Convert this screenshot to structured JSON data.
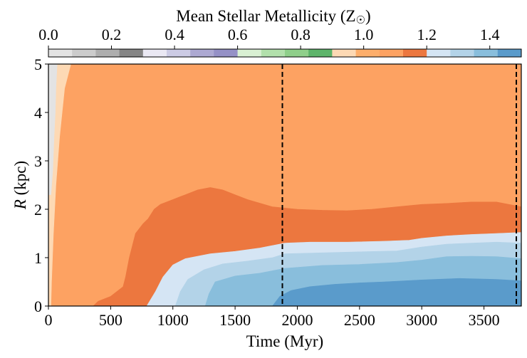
{
  "chart_data": {
    "type": "contourf",
    "title": "",
    "colorbar": {
      "label": "Mean Stellar Metallicity (Z",
      "label_symbol": "☉",
      "label_close": ")",
      "range": [
        0.0,
        1.5
      ],
      "ticks": [
        0.0,
        0.2,
        0.4,
        0.6,
        0.8,
        1.0,
        1.2,
        1.4
      ],
      "tick_labels": [
        "0.0",
        "0.2",
        "0.4",
        "0.6",
        "0.8",
        "1.0",
        "1.2",
        "1.4"
      ],
      "levels": [
        0.0,
        0.075,
        0.15,
        0.225,
        0.3,
        0.375,
        0.45,
        0.525,
        0.6,
        0.675,
        0.75,
        0.825,
        0.9,
        0.975,
        1.05,
        1.125,
        1.2,
        1.275,
        1.35,
        1.425,
        1.5
      ],
      "colors": [
        "#e3e3e3",
        "#cccccc",
        "#aeaeae",
        "#858585",
        "#eae8f3",
        "#cccbe4",
        "#ada9d2",
        "#9591c6",
        "#d9f0d3",
        "#b2e0ab",
        "#8fcf8a",
        "#5db46a",
        "#fdd9b4",
        "#fdae6b",
        "#fda262",
        "#ec773f",
        "#d5e5f4",
        "#b3d3e8",
        "#89bedc",
        "#5a9bcb"
      ]
    },
    "xlabel": "Time (Myr)",
    "ylabel_italic": "R",
    "ylabel_rest": " (kpc)",
    "xlim": [
      0,
      3800
    ],
    "ylim": [
      0,
      5
    ],
    "xticks": [
      0,
      500,
      1000,
      1500,
      2000,
      2500,
      3000,
      3500
    ],
    "xtick_labels": [
      "0",
      "500",
      "1000",
      "1500",
      "2000",
      "2500",
      "3000",
      "3500"
    ],
    "yticks": [
      0,
      1,
      2,
      3,
      4,
      5
    ],
    "ytick_labels": [
      "0",
      "1",
      "2",
      "3",
      "4",
      "5"
    ],
    "vlines": [
      1880,
      3760
    ],
    "vline_style": "dashed",
    "regions": [
      {
        "level": "1.05-1.125",
        "color": "#fda262",
        "boundary": [
          [
            0,
            0
          ],
          [
            0,
            5
          ],
          [
            3800,
            5
          ],
          [
            3800,
            0
          ]
        ]
      },
      {
        "level": "1.125-1.2",
        "color": "#ec773f",
        "boundary": [
          [
            360,
            0
          ],
          [
            400,
            0.1
          ],
          [
            500,
            0.2
          ],
          [
            600,
            0.4
          ],
          [
            620,
            0.6
          ],
          [
            650,
            1.0
          ],
          [
            680,
            1.3
          ],
          [
            700,
            1.5
          ],
          [
            760,
            1.7
          ],
          [
            800,
            1.8
          ],
          [
            850,
            2.0
          ],
          [
            900,
            2.1
          ],
          [
            1000,
            2.2
          ],
          [
            1100,
            2.3
          ],
          [
            1200,
            2.4
          ],
          [
            1300,
            2.45
          ],
          [
            1400,
            2.4
          ],
          [
            1500,
            2.3
          ],
          [
            1600,
            2.2
          ],
          [
            1800,
            2.05
          ],
          [
            2000,
            2.0
          ],
          [
            2200,
            1.98
          ],
          [
            2400,
            1.97
          ],
          [
            2600,
            2.0
          ],
          [
            2800,
            2.05
          ],
          [
            3000,
            2.1
          ],
          [
            3200,
            2.12
          ],
          [
            3400,
            2.15
          ],
          [
            3600,
            2.15
          ],
          [
            3800,
            2.05
          ],
          [
            3800,
            0
          ]
        ]
      },
      {
        "level": "1.2-1.275",
        "color": "#d5e5f4",
        "boundary": [
          [
            790,
            0
          ],
          [
            860,
            0.3
          ],
          [
            920,
            0.6
          ],
          [
            1000,
            0.85
          ],
          [
            1100,
            0.98
          ],
          [
            1300,
            1.08
          ],
          [
            1500,
            1.13
          ],
          [
            1700,
            1.2
          ],
          [
            1900,
            1.3
          ],
          [
            2100,
            1.32
          ],
          [
            2400,
            1.32
          ],
          [
            2700,
            1.34
          ],
          [
            2900,
            1.36
          ],
          [
            3000,
            1.4
          ],
          [
            3200,
            1.45
          ],
          [
            3400,
            1.48
          ],
          [
            3600,
            1.5
          ],
          [
            3800,
            1.52
          ],
          [
            3800,
            0
          ]
        ]
      },
      {
        "level": "1.275-1.35",
        "color": "#b3d3e8",
        "boundary": [
          [
            1020,
            0
          ],
          [
            1060,
            0.3
          ],
          [
            1120,
            0.55
          ],
          [
            1250,
            0.75
          ],
          [
            1400,
            0.87
          ],
          [
            1600,
            0.93
          ],
          [
            1800,
            1.0
          ],
          [
            1900,
            1.08
          ],
          [
            2200,
            1.1
          ],
          [
            2500,
            1.12
          ],
          [
            2800,
            1.14
          ],
          [
            3000,
            1.22
          ],
          [
            3200,
            1.28
          ],
          [
            3400,
            1.3
          ],
          [
            3600,
            1.32
          ],
          [
            3800,
            1.3
          ],
          [
            3800,
            0
          ]
        ]
      },
      {
        "level": "1.35-1.425",
        "color": "#89bedc",
        "boundary": [
          [
            1260,
            0
          ],
          [
            1290,
            0.25
          ],
          [
            1340,
            0.5
          ],
          [
            1500,
            0.62
          ],
          [
            1700,
            0.68
          ],
          [
            1900,
            0.78
          ],
          [
            2200,
            0.84
          ],
          [
            2500,
            0.86
          ],
          [
            2800,
            0.9
          ],
          [
            3000,
            0.95
          ],
          [
            3200,
            1.02
          ],
          [
            3400,
            1.03
          ],
          [
            3600,
            1.02
          ],
          [
            3800,
            0.98
          ],
          [
            3800,
            0
          ]
        ]
      },
      {
        "level": "1.425-1.5",
        "color": "#5a9bcb",
        "boundary": [
          [
            1800,
            0
          ],
          [
            1860,
            0.2
          ],
          [
            1950,
            0.32
          ],
          [
            2100,
            0.4
          ],
          [
            2300,
            0.45
          ],
          [
            2500,
            0.48
          ],
          [
            2700,
            0.5
          ],
          [
            3000,
            0.54
          ],
          [
            3300,
            0.57
          ],
          [
            3600,
            0.55
          ],
          [
            3800,
            0.52
          ],
          [
            3800,
            0
          ]
        ]
      },
      {
        "level": "0.975-1.05",
        "color": "#fdd9b4",
        "boundary": [
          [
            0,
            0
          ],
          [
            0,
            5
          ],
          [
            180,
            5
          ],
          [
            130,
            4.5
          ],
          [
            90,
            3.5
          ],
          [
            60,
            2.5
          ],
          [
            40,
            1.5
          ],
          [
            25,
            0.5
          ],
          [
            20,
            0
          ]
        ]
      },
      {
        "level": "0.0-0.075",
        "color": "#e3e3e3",
        "boundary": [
          [
            0,
            2.3
          ],
          [
            0,
            5
          ],
          [
            70,
            5
          ],
          [
            60,
            4.5
          ],
          [
            55,
            4.0
          ],
          [
            45,
            3.5
          ],
          [
            35,
            2.8
          ],
          [
            20,
            2.3
          ]
        ]
      }
    ]
  }
}
